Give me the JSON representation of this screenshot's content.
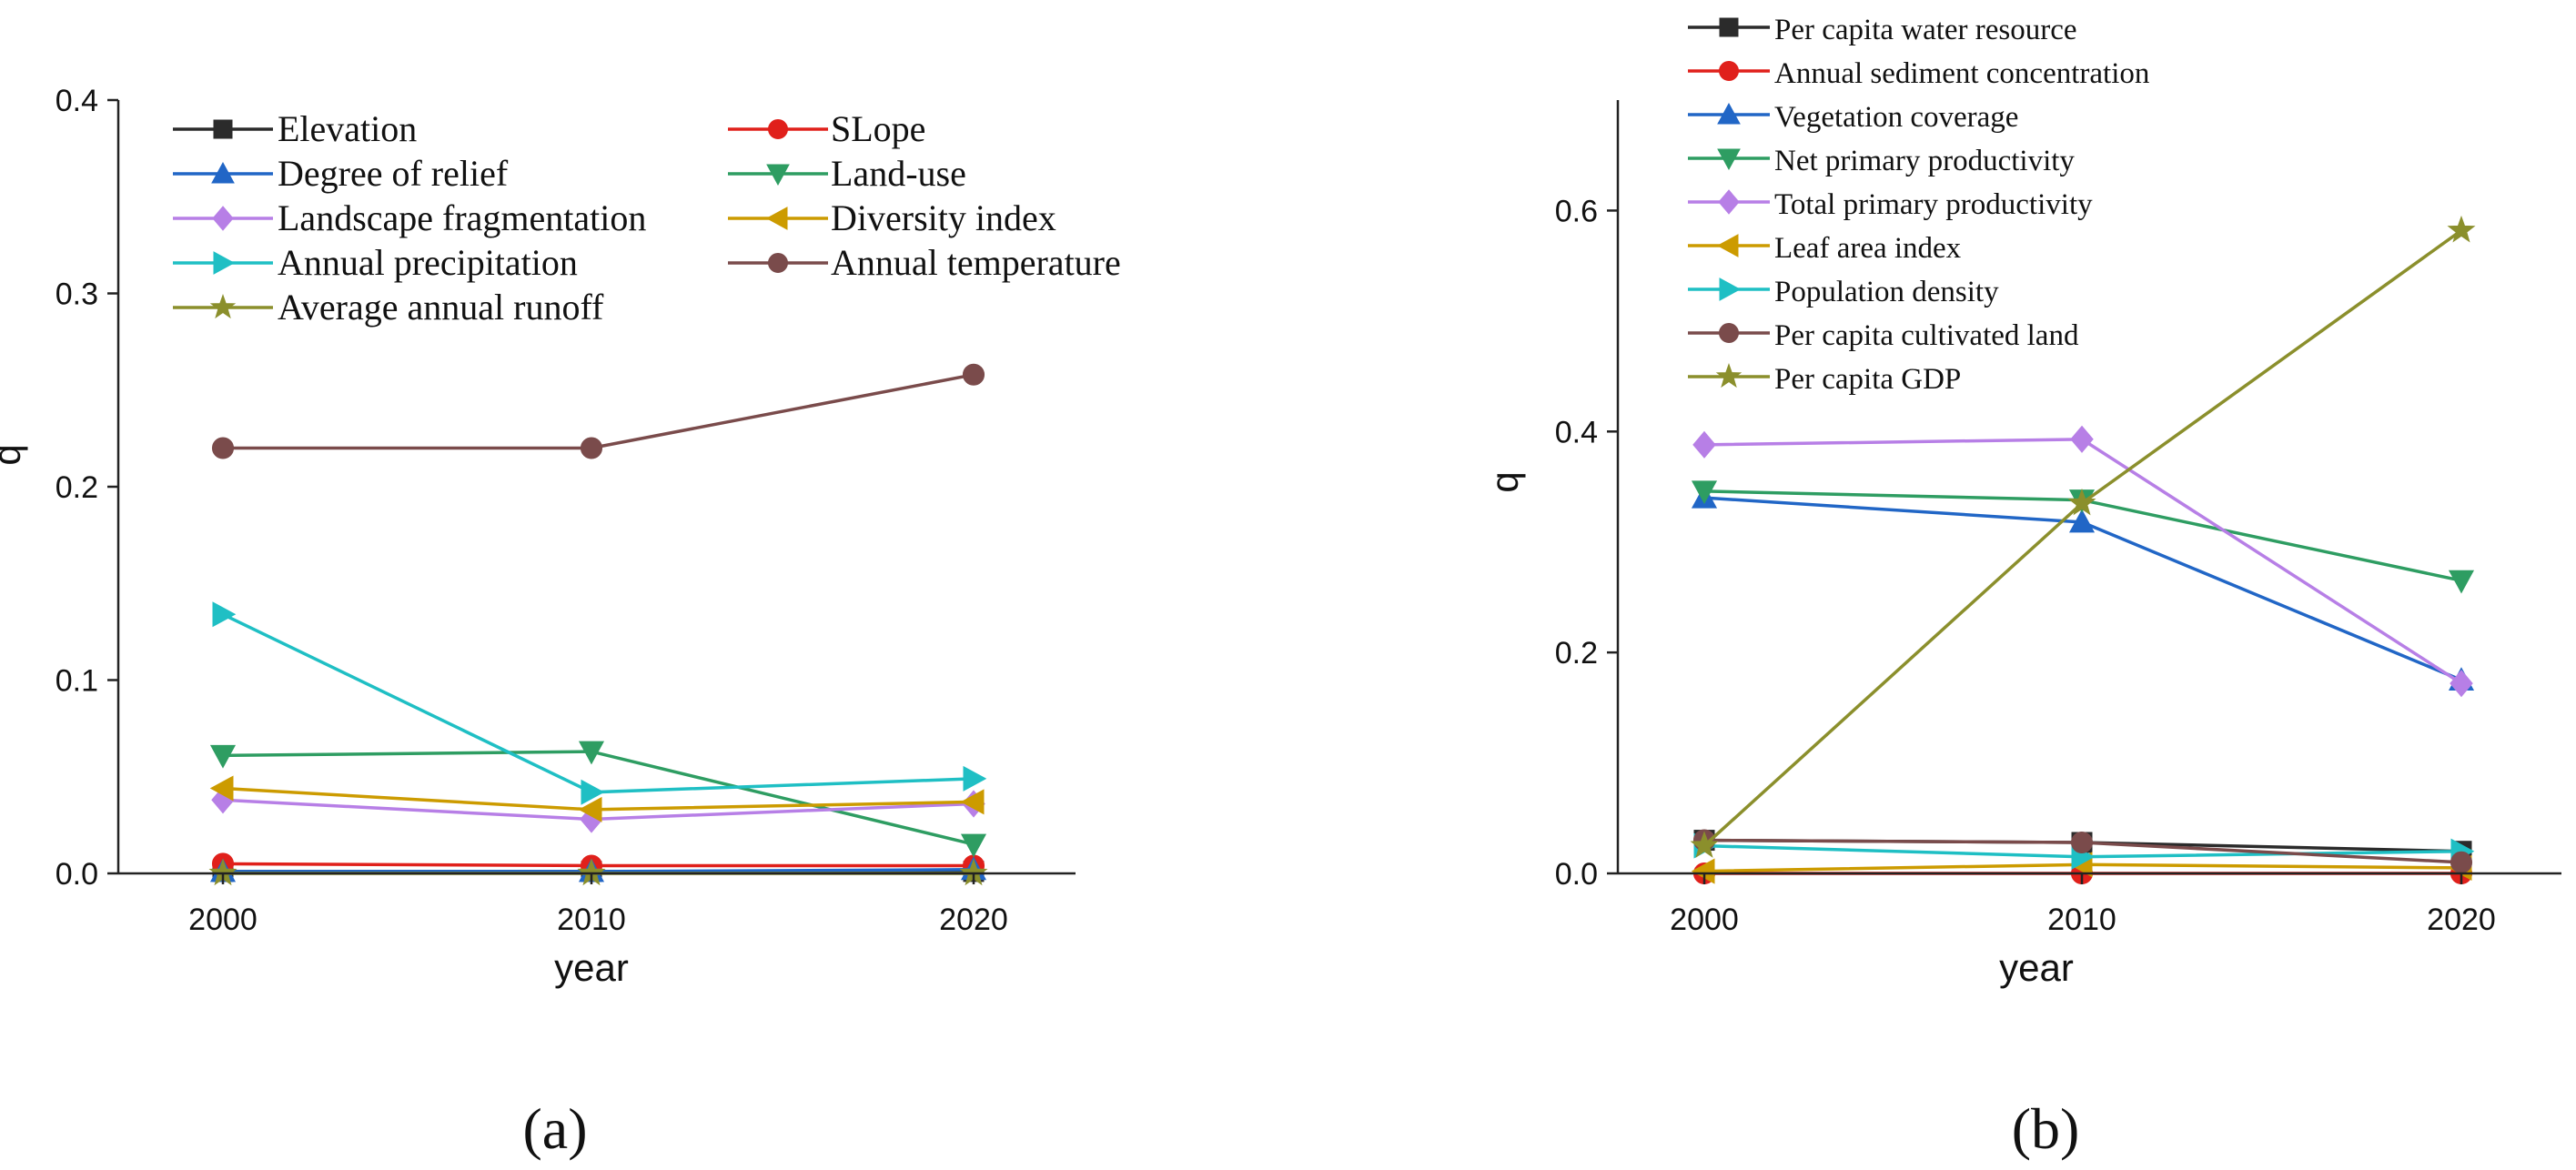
{
  "chart_data": [
    {
      "id": "a",
      "type": "line",
      "panel_label": "(a)",
      "xlabel": "year",
      "ylabel": "q",
      "categories": [
        "2000",
        "2010",
        "2020"
      ],
      "ylim": [
        0,
        0.4
      ],
      "yticks": [
        "0.0",
        "0.1",
        "0.2",
        "0.3",
        "0.4"
      ],
      "legend_position": "top",
      "series": [
        {
          "name": "Elevation",
          "color": "#2b2b2b",
          "marker": "square",
          "values": [
            0.001,
            0.001,
            0.001
          ]
        },
        {
          "name": "SLope",
          "color": "#e0201b",
          "marker": "circle",
          "values": [
            0.005,
            0.004,
            0.004
          ]
        },
        {
          "name": "Degree of relief",
          "color": "#2166c6",
          "marker": "triangle-up",
          "values": [
            0.001,
            0.001,
            0.002
          ]
        },
        {
          "name": "Land-use",
          "color": "#2e9d62",
          "marker": "triangle-down",
          "values": [
            0.061,
            0.063,
            0.015
          ]
        },
        {
          "name": "Landscape fragmentation",
          "color": "#b77fe6",
          "marker": "diamond",
          "values": [
            0.038,
            0.028,
            0.036
          ]
        },
        {
          "name": "Diversity index",
          "color": "#cc9b00",
          "marker": "triangle-left",
          "values": [
            0.044,
            0.033,
            0.037
          ]
        },
        {
          "name": "Annual precipitation",
          "color": "#1fbfc4",
          "marker": "triangle-right",
          "values": [
            0.134,
            0.042,
            0.049
          ]
        },
        {
          "name": "Annual temperature",
          "color": "#7a4b4b",
          "marker": "circle",
          "values": [
            0.22,
            0.22,
            0.258
          ]
        },
        {
          "name": "Average annual runoff",
          "color": "#8b8f2c",
          "marker": "star",
          "values": [
            0.0,
            0.0,
            0.0
          ]
        }
      ]
    },
    {
      "id": "b",
      "type": "line",
      "panel_label": "(b)",
      "xlabel": "year",
      "ylabel": "q",
      "categories": [
        "2000",
        "2010",
        "2020"
      ],
      "ylim": [
        0,
        0.7
      ],
      "yticks": [
        "0.0",
        "0.2",
        "0.4",
        "0.6"
      ],
      "legend_position": "top-left",
      "series": [
        {
          "name": "Per capita water resource",
          "color": "#2b2b2b",
          "marker": "square",
          "values": [
            0.03,
            0.028,
            0.02
          ]
        },
        {
          "name": "Annual sediment concentration",
          "color": "#e0201b",
          "marker": "circle",
          "values": [
            0.0,
            0.0,
            0.0
          ]
        },
        {
          "name": "Vegetation coverage",
          "color": "#2166c6",
          "marker": "triangle-up",
          "values": [
            0.34,
            0.318,
            0.175
          ]
        },
        {
          "name": "Net primary productivity",
          "color": "#2e9d62",
          "marker": "triangle-down",
          "values": [
            0.346,
            0.338,
            0.265
          ]
        },
        {
          "name": "Total primary productivity",
          "color": "#b77fe6",
          "marker": "diamond",
          "values": [
            0.388,
            0.393,
            0.172
          ]
        },
        {
          "name": "Leaf area index",
          "color": "#cc9b00",
          "marker": "triangle-left",
          "values": [
            0.002,
            0.008,
            0.005
          ]
        },
        {
          "name": "Population density",
          "color": "#1fbfc4",
          "marker": "triangle-right",
          "values": [
            0.025,
            0.015,
            0.02
          ]
        },
        {
          "name": "Per capita cultivated land",
          "color": "#7a4b4b",
          "marker": "circle",
          "values": [
            0.03,
            0.028,
            0.01
          ]
        },
        {
          "name": "Per capita GDP",
          "color": "#8b8f2c",
          "marker": "star",
          "values": [
            0.025,
            0.335,
            0.582
          ]
        }
      ]
    }
  ]
}
